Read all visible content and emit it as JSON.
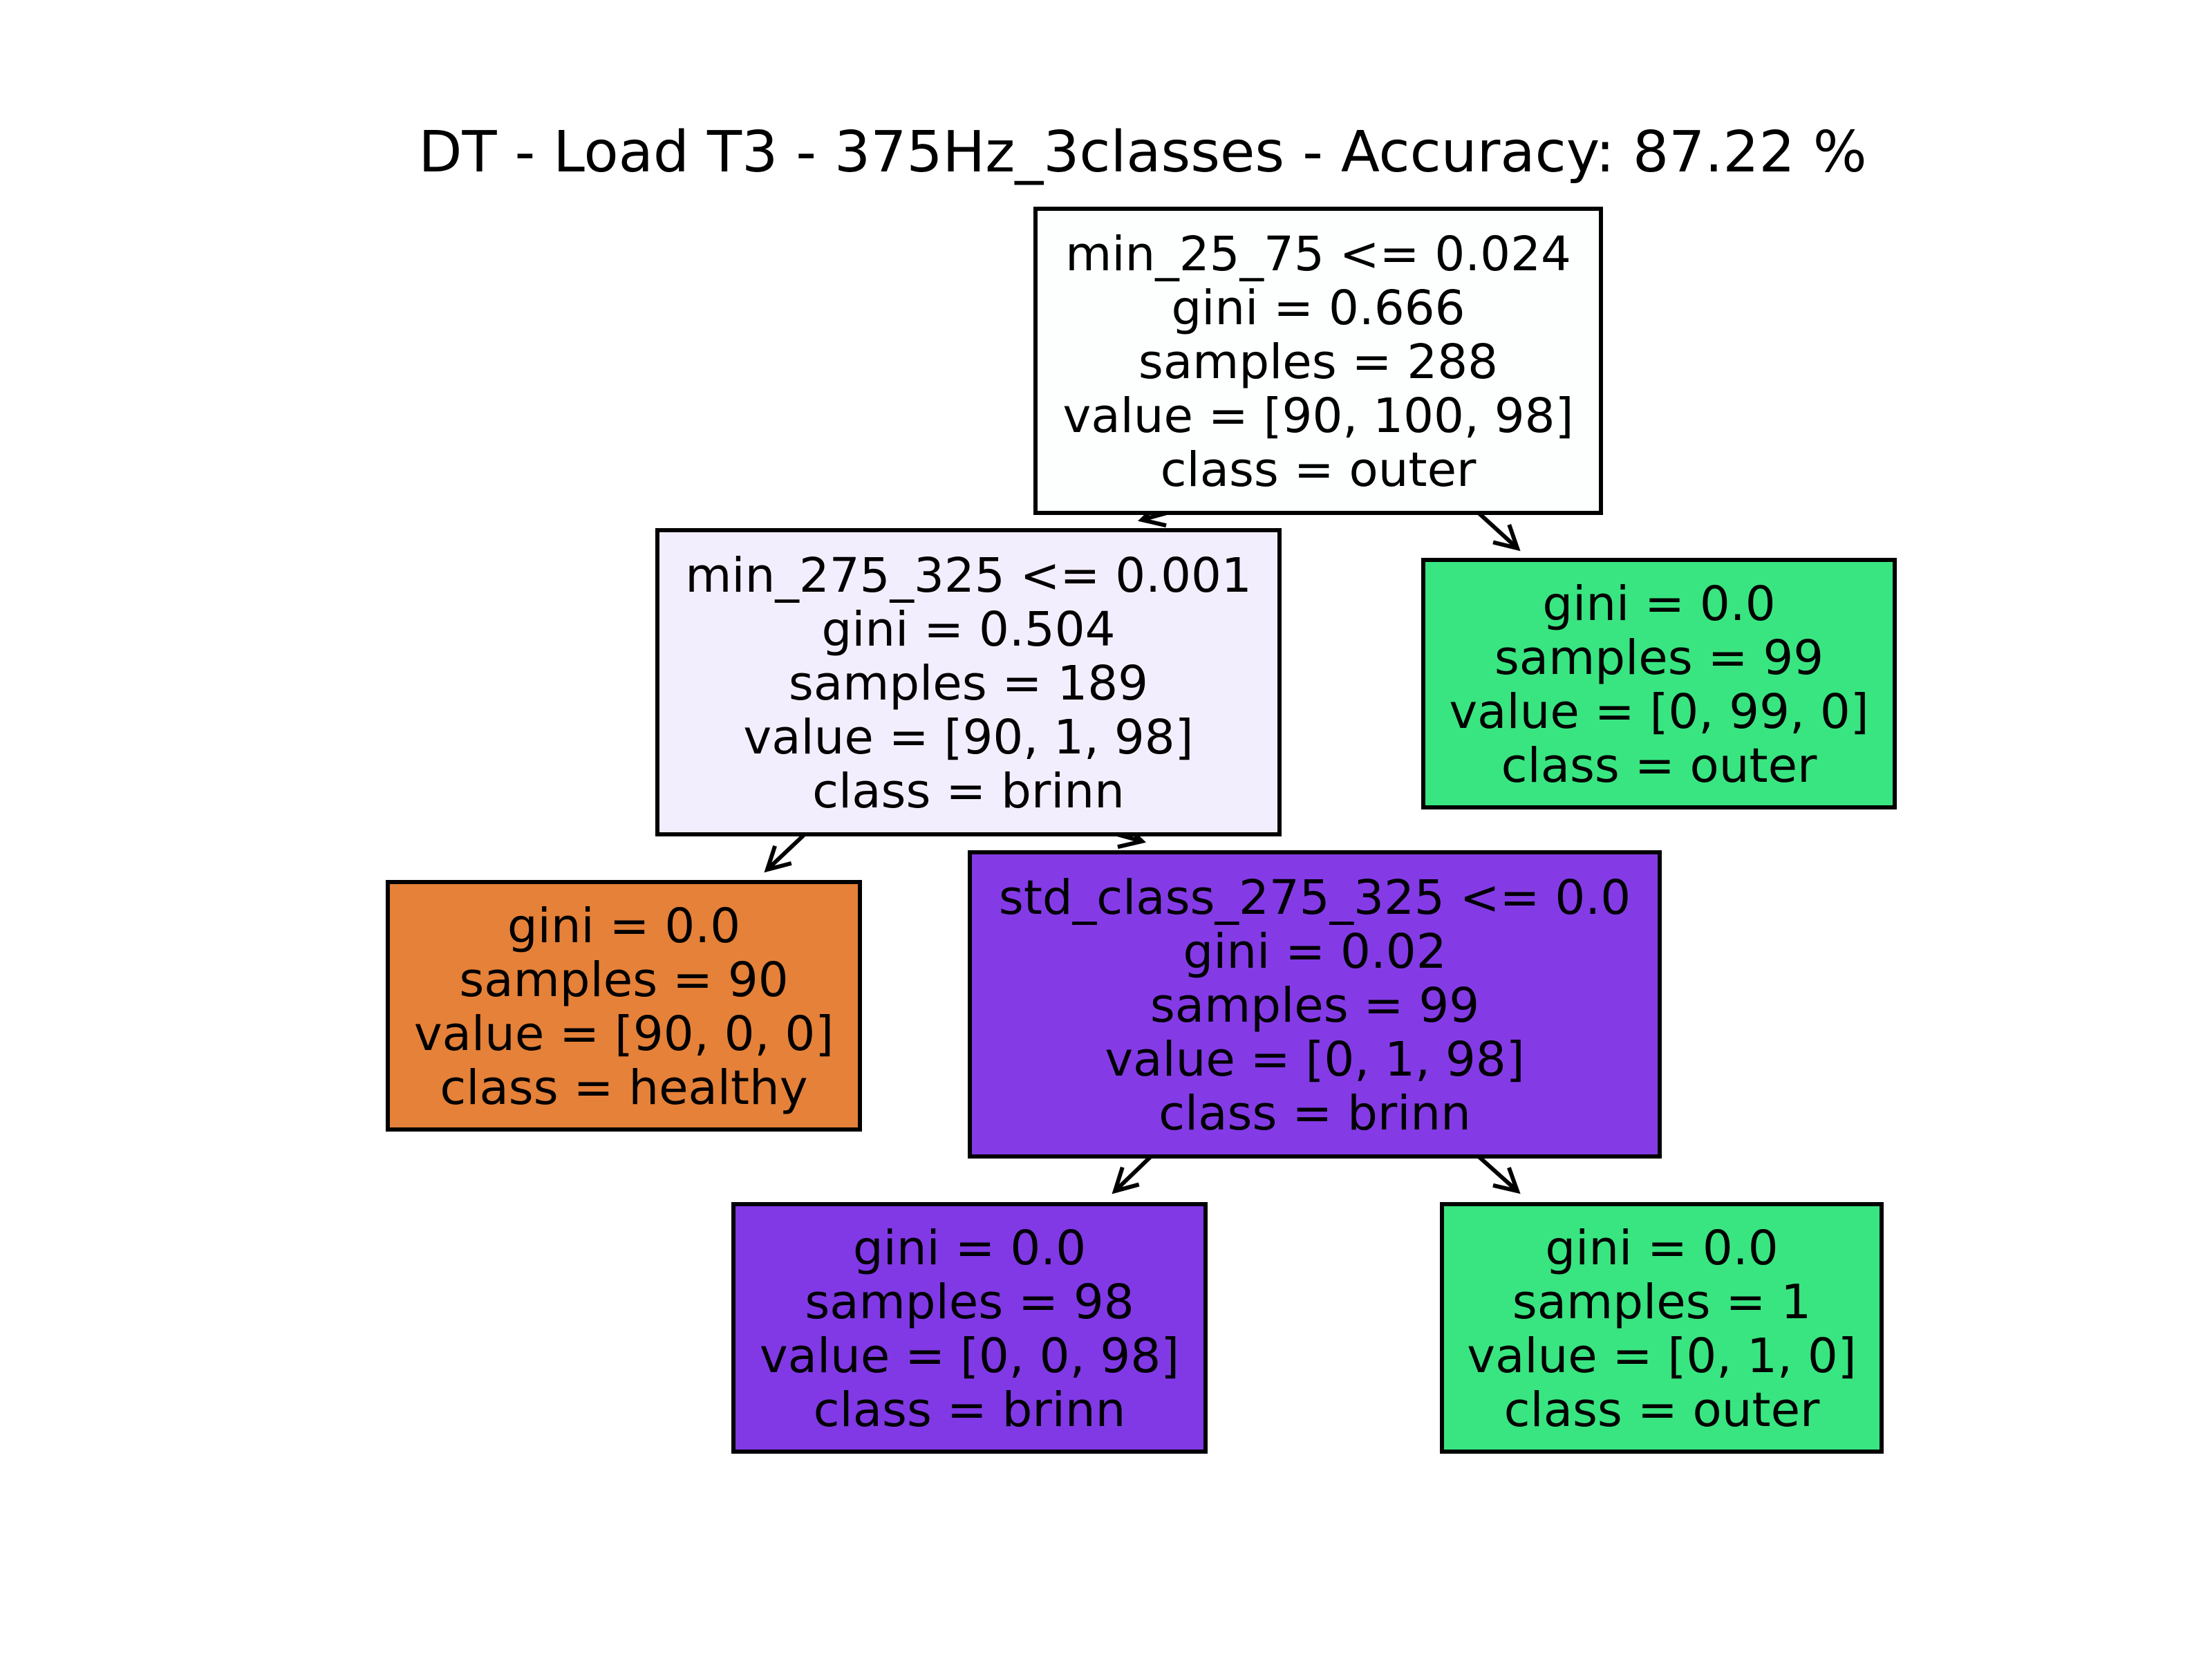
{
  "title": "DT - Load T3 - 375Hz_3classes - Accuracy: 87.22 %",
  "nodes": [
    {
      "id": "root",
      "lines": [
        "min_25_75 <= 0.024",
        "gini = 0.666",
        "samples = 288",
        "value = [90, 100, 98]",
        "class = outer"
      ],
      "fill": "#fdfffe"
    },
    {
      "id": "left",
      "lines": [
        "min_275_325 <= 0.001",
        "gini = 0.504",
        "samples = 189",
        "value = [90, 1, 98]",
        "class = brinn"
      ],
      "fill": "#f3eefd"
    },
    {
      "id": "right",
      "lines": [
        "gini = 0.0",
        "samples = 99",
        "value = [0, 99, 0]",
        "class = outer"
      ],
      "fill": "#39e581"
    },
    {
      "id": "left-left",
      "lines": [
        "gini = 0.0",
        "samples = 90",
        "value = [90, 0, 0]",
        "class = healthy"
      ],
      "fill": "#e58139"
    },
    {
      "id": "left-right",
      "lines": [
        "std_class_275_325 <= 0.0",
        "gini = 0.02",
        "samples = 99",
        "value = [0, 1, 98]",
        "class = brinn"
      ],
      "fill": "#843be6"
    },
    {
      "id": "left-right-left",
      "lines": [
        "gini = 0.0",
        "samples = 98",
        "value = [0, 0, 98]",
        "class = brinn"
      ],
      "fill": "#8139e5"
    },
    {
      "id": "left-right-right",
      "lines": [
        "gini = 0.0",
        "samples = 1",
        "value = [0, 1, 0]",
        "class = outer"
      ],
      "fill": "#39e581"
    }
  ],
  "edges": [
    {
      "from": "root",
      "to": "left"
    },
    {
      "from": "root",
      "to": "right"
    },
    {
      "from": "left",
      "to": "left-left"
    },
    {
      "from": "left",
      "to": "left-right"
    },
    {
      "from": "left-right",
      "to": "left-right-left"
    },
    {
      "from": "left-right",
      "to": "left-right-right"
    }
  ]
}
